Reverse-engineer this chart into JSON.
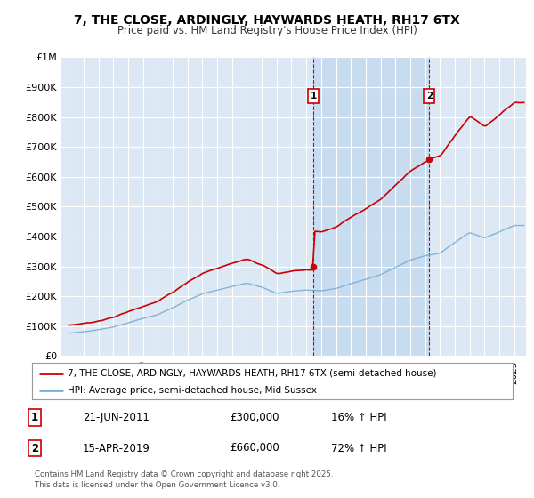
{
  "title_line1": "7, THE CLOSE, ARDINGLY, HAYWARDS HEATH, RH17 6TX",
  "title_line2": "Price paid vs. HM Land Registry's House Price Index (HPI)",
  "bg_color": "#dce9f5",
  "bg_color_shaded": "#c8dcf0",
  "grid_color": "#ffffff",
  "ylim": [
    0,
    1000000
  ],
  "yticks": [
    0,
    100000,
    200000,
    300000,
    400000,
    500000,
    600000,
    700000,
    800000,
    900000,
    1000000
  ],
  "ytick_labels": [
    "£0",
    "£100K",
    "£200K",
    "£300K",
    "£400K",
    "£500K",
    "£600K",
    "£700K",
    "£800K",
    "£900K",
    "£1M"
  ],
  "sale1_date": 2011.47,
  "sale1_price": 300000,
  "sale1_label": "1",
  "sale2_date": 2019.28,
  "sale2_price": 660000,
  "sale2_label": "2",
  "red_line_color": "#cc0000",
  "blue_line_color": "#7aadd4",
  "annotation_box_color": "#cc0000",
  "dashed_line_color": "#cc0000",
  "legend_label1": "7, THE CLOSE, ARDINGLY, HAYWARDS HEATH, RH17 6TX (semi-detached house)",
  "legend_label2": "HPI: Average price, semi-detached house, Mid Sussex",
  "table_row1": [
    "1",
    "21-JUN-2011",
    "£300,000",
    "16% ↑ HPI"
  ],
  "table_row2": [
    "2",
    "15-APR-2019",
    "£660,000",
    "72% ↑ HPI"
  ],
  "footer": "Contains HM Land Registry data © Crown copyright and database right 2025.\nThis data is licensed under the Open Government Licence v3.0.",
  "xlim_start": 1994.5,
  "xlim_end": 2025.8
}
